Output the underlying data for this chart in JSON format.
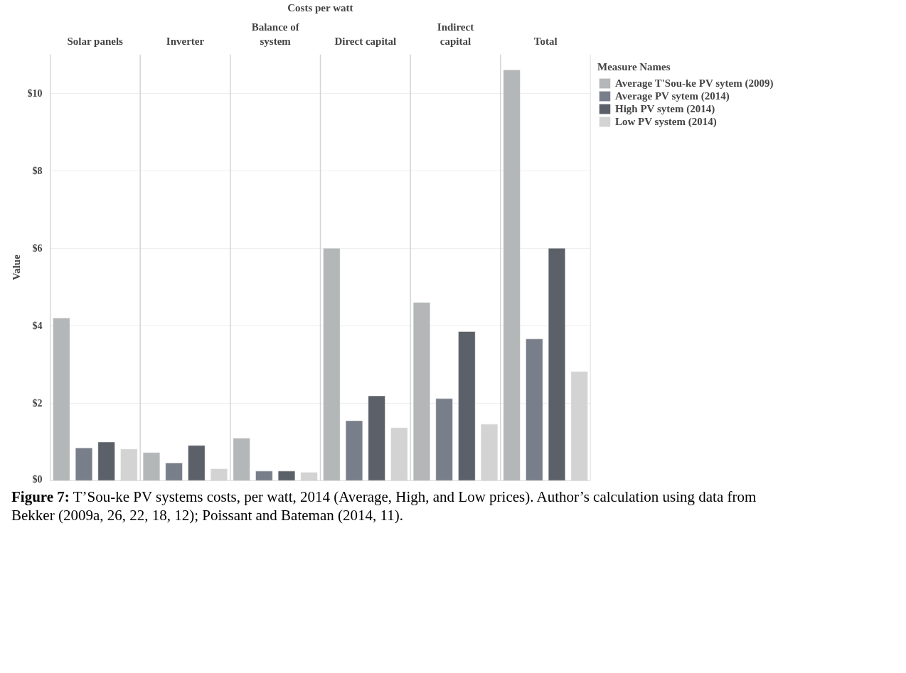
{
  "chart_data": {
    "type": "bar",
    "xlabel": "Costs per watt",
    "ylabel": "Value",
    "legend_title": "Measure Names",
    "categories": [
      "Solar panels",
      "Inverter",
      "Balance of system",
      "Direct capital",
      "Indirect capital",
      "Total"
    ],
    "series": [
      {
        "name": "Average T'Sou-ke PV sytem (2009)",
        "color": "#b4b7b8",
        "values": [
          4.2,
          0.73,
          1.1,
          6.0,
          4.6,
          10.6
        ]
      },
      {
        "name": "Average PV sytem (2014)",
        "color": "#787e8a",
        "values": [
          0.85,
          0.46,
          0.25,
          1.55,
          2.12,
          3.66
        ]
      },
      {
        "name": "High PV sytem (2014)",
        "color": "#5c6068",
        "values": [
          1.0,
          0.91,
          0.25,
          2.19,
          3.85,
          6.0
        ]
      },
      {
        "name": "Low PV system (2014)",
        "color": "#d3d3d3",
        "values": [
          0.82,
          0.31,
          0.22,
          1.37,
          1.46,
          2.82
        ]
      }
    ],
    "ylim": [
      0,
      11
    ],
    "yticks": [
      {
        "value": 0,
        "label": "$0"
      },
      {
        "value": 2,
        "label": "$2"
      },
      {
        "value": 4,
        "label": "$4"
      },
      {
        "value": 6,
        "label": "$6"
      },
      {
        "value": 8,
        "label": "$8"
      },
      {
        "value": 10,
        "label": "$10"
      }
    ],
    "grid": "y",
    "legend": "top right",
    "annotations": [
      "Figure 7: T’Sou-ke PV systems costs, per watt, 2014 (Average, High, and Low prices). Author’s calculation using data from Bekker (2009a, 26, 22, 18, 12); Poissant and Bateman (2014, 11)."
    ]
  }
}
